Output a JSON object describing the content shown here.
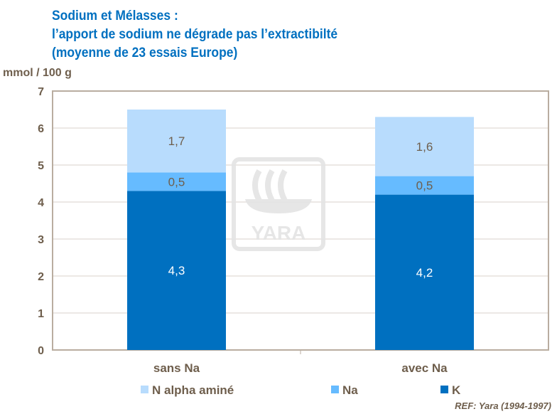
{
  "chart_data": {
    "type": "bar",
    "stacked": true,
    "title": [
      "Sodium et  Mélasses :",
      "l’apport de sodium ne dégrade pas l’extractibilté",
      "(moyenne de 23 essais Europe)"
    ],
    "ylabel": "mmol / 100 g",
    "xlabel": "",
    "ylim": [
      0,
      7
    ],
    "yticks": [
      0,
      1,
      2,
      3,
      4,
      5,
      6,
      7
    ],
    "categories": [
      "sans Na",
      "avec Na"
    ],
    "series": [
      {
        "name": "K",
        "values": [
          4.3,
          4.2
        ],
        "labels": [
          "4,3",
          "4,2"
        ],
        "color": "#0070c0"
      },
      {
        "name": "Na",
        "values": [
          0.5,
          0.5
        ],
        "labels": [
          "0,5",
          "0,5"
        ],
        "color": "#66bbff"
      },
      {
        "name": "N alpha aminé",
        "values": [
          1.7,
          1.6
        ],
        "labels": [
          "1,7",
          "1,6"
        ],
        "color": "#b8dcfd"
      }
    ],
    "legend_order": [
      "N alpha aminé",
      "Na",
      "K"
    ],
    "legend": "bottom",
    "grid": true
  },
  "ref": "REF: Yara (1994-1997)",
  "watermark": "YARA"
}
